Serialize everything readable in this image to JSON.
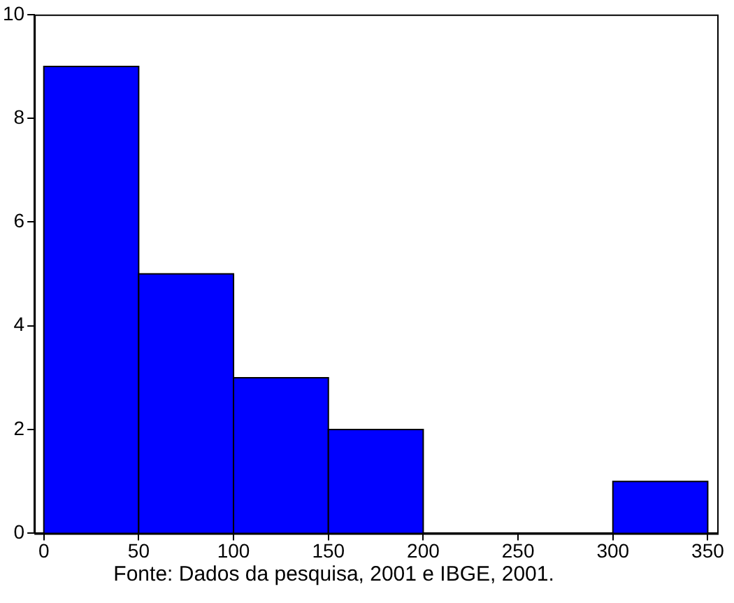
{
  "chart_data": {
    "type": "histogram",
    "bins": [
      0,
      50,
      100,
      150,
      200,
      250,
      300,
      350
    ],
    "values": [
      9,
      5,
      3,
      2,
      0,
      0,
      1
    ],
    "color": "#0000ff",
    "xlim": [
      -5,
      355
    ],
    "xticks": [
      0,
      50,
      100,
      150,
      200,
      250,
      300,
      350
    ],
    "ylim": [
      0,
      10
    ],
    "yticks": [
      0,
      2,
      4,
      6,
      8,
      10
    ],
    "grid": false,
    "legend": false,
    "annotations": [
      "Fonte: Dados da pesquisa, 2001 e IBGE, 2001."
    ]
  }
}
